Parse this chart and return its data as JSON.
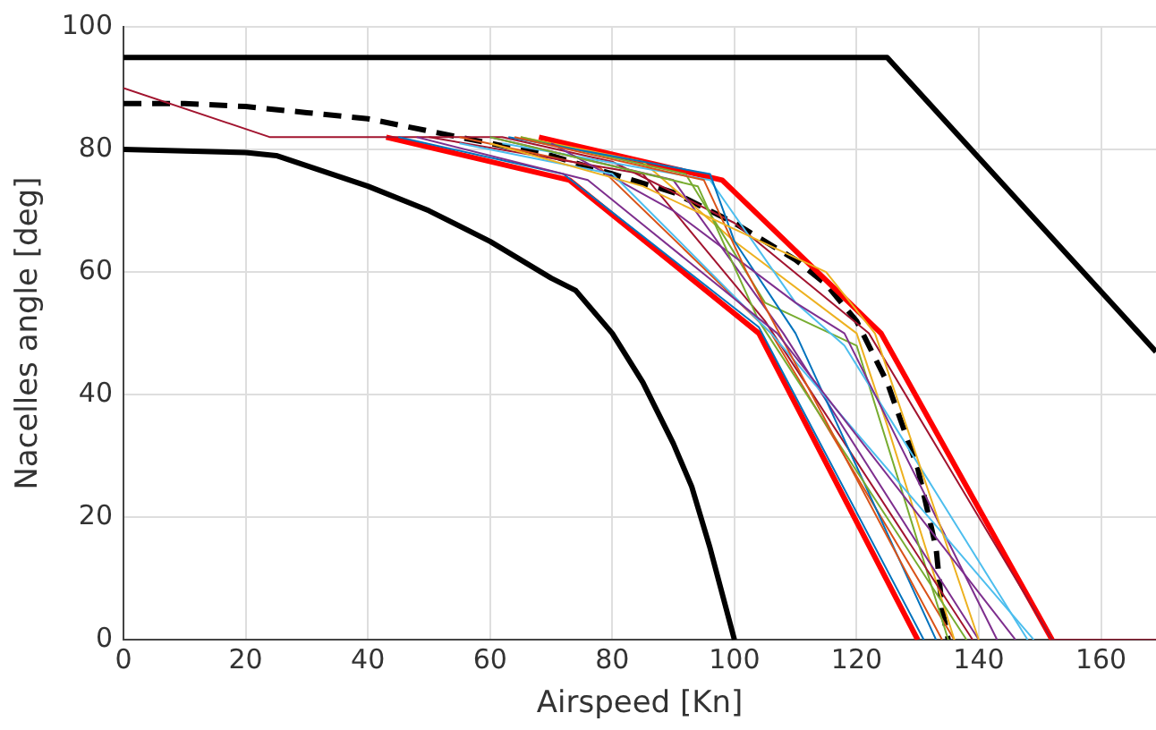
{
  "chart_data": {
    "type": "line",
    "xlabel": "Airspeed [Kn]",
    "ylabel": "Nacelles angle [deg]",
    "xlim": [
      0,
      169
    ],
    "xticks": [
      0,
      20,
      40,
      60,
      80,
      100,
      120,
      140,
      160
    ],
    "ylim": [
      0,
      100
    ],
    "yticks": [
      0,
      20,
      40,
      60,
      80,
      100
    ],
    "grid": true,
    "legend": false,
    "marker": "none",
    "series": [
      {
        "color": "#000000",
        "x": [
          0,
          125,
          169
        ],
        "values": [
          95,
          95,
          47
        ]
      },
      {
        "color": "#000000",
        "x": [
          0,
          20,
          25,
          40,
          50,
          60,
          70,
          74,
          80,
          85,
          90,
          93,
          96,
          100
        ],
        "values": [
          80,
          79.5,
          79,
          74,
          70,
          65,
          59,
          57,
          50,
          42,
          32,
          25,
          15,
          0
        ]
      },
      {
        "color": "#000000",
        "line_style": "dashed",
        "x": [
          0,
          10,
          20,
          30,
          40,
          50,
          60,
          70,
          80,
          90,
          100,
          110,
          115,
          120,
          125,
          130,
          133,
          134,
          135
        ],
        "values": [
          87.5,
          87.5,
          87,
          86,
          85,
          83,
          81,
          79,
          76,
          73,
          68,
          62,
          58,
          52,
          42,
          28,
          15,
          5,
          0
        ]
      },
      {
        "color": "#ff0000",
        "x": [
          68,
          98,
          124,
          152
        ],
        "values": [
          82,
          75,
          50,
          0
        ]
      },
      {
        "color": "#ff0000",
        "x": [
          43,
          73,
          104,
          130
        ],
        "values": [
          82,
          75,
          50,
          0
        ]
      },
      {
        "color": "#a2142f",
        "x": [
          0,
          24,
          62,
          80,
          100,
          122,
          152,
          169
        ],
        "values": [
          90,
          82,
          82,
          78,
          68,
          50,
          0,
          0
        ]
      },
      {
        "color": "#0072bd",
        "x": [
          45,
          72,
          104,
          131
        ],
        "values": [
          82,
          76,
          51,
          0
        ]
      },
      {
        "color": "#d95319",
        "x": [
          55,
          78,
          106,
          136
        ],
        "values": [
          82,
          77,
          50,
          0
        ]
      },
      {
        "color": "#edb120",
        "x": [
          65,
          85,
          100,
          120,
          125,
          136
        ],
        "values": [
          82,
          78,
          65,
          50,
          35,
          0
        ]
      },
      {
        "color": "#7e2f8e",
        "x": [
          60,
          90,
          108,
          140
        ],
        "values": [
          82,
          75,
          50,
          0
        ]
      },
      {
        "color": "#77ac30",
        "x": [
          65,
          92,
          105,
          120,
          135
        ],
        "values": [
          82,
          76,
          55,
          48,
          0
        ]
      },
      {
        "color": "#4dbeee",
        "x": [
          62,
          96,
          110,
          118,
          148
        ],
        "values": [
          81,
          75,
          55,
          48,
          0
        ]
      },
      {
        "color": "#a2142f",
        "x": [
          50,
          85,
          105,
          139
        ],
        "values": [
          82,
          76,
          52,
          0
        ]
      },
      {
        "color": "#0072bd",
        "x": [
          63,
          96,
          100,
          110,
          133
        ],
        "values": [
          82,
          76,
          65,
          50,
          0
        ]
      },
      {
        "color": "#7e2f8e",
        "x": [
          70,
          90,
          110,
          118,
          143
        ],
        "values": [
          81,
          70,
          55,
          50,
          0
        ]
      },
      {
        "color": "#77ac30",
        "x": [
          60,
          94,
          104,
          138
        ],
        "values": [
          82,
          74,
          52,
          0
        ]
      },
      {
        "color": "#4dbeee",
        "x": [
          55,
          80,
          106,
          149
        ],
        "values": [
          81,
          76,
          50,
          0
        ]
      },
      {
        "color": "#d95319",
        "x": [
          64,
          95,
          102,
          134
        ],
        "values": [
          82,
          75,
          60,
          0
        ]
      },
      {
        "color": "#edb120",
        "x": [
          60,
          85,
          115,
          123,
          140
        ],
        "values": [
          81,
          74,
          60,
          50,
          0
        ]
      },
      {
        "color": "#7e2f8e",
        "x": [
          48,
          76,
          107,
          146
        ],
        "values": [
          82,
          75,
          50,
          0
        ]
      }
    ]
  }
}
